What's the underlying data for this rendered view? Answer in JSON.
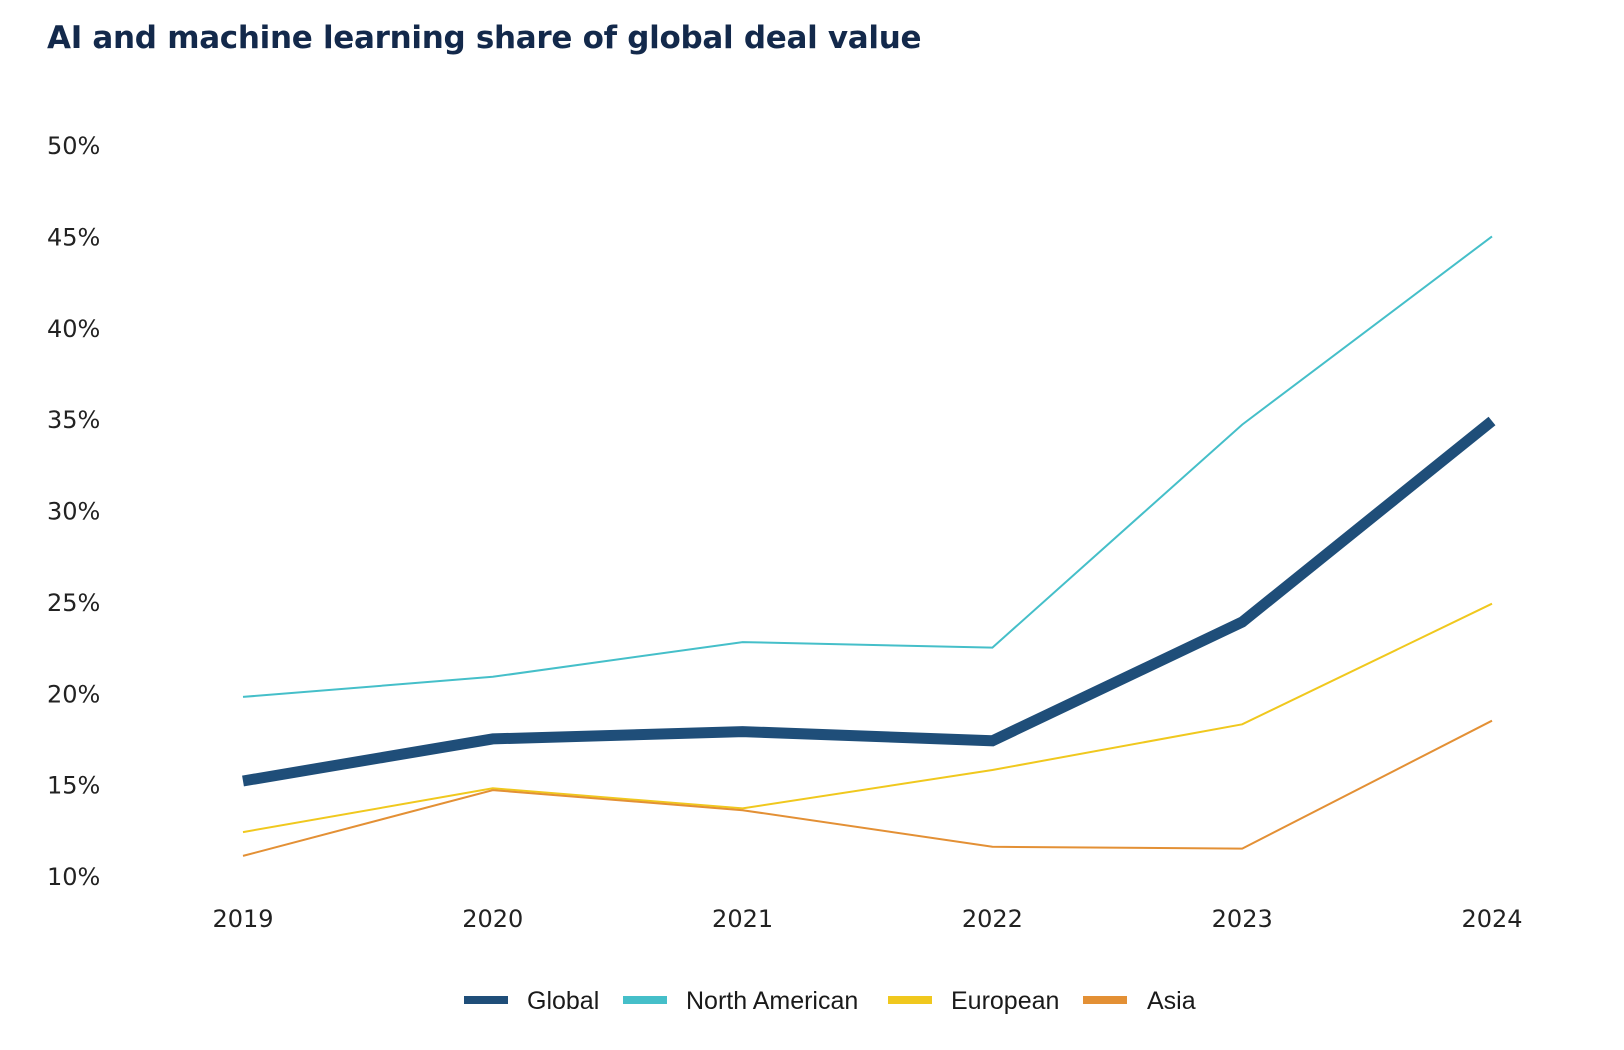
{
  "chart_data": {
    "type": "line",
    "title": "AI and machine learning share of global deal value",
    "xlabel": "",
    "ylabel": "",
    "x": [
      "2019",
      "2020",
      "2021",
      "2022",
      "2023",
      "2024"
    ],
    "ylim": [
      10,
      50
    ],
    "yticks": [
      10,
      15,
      20,
      25,
      30,
      35,
      40,
      45,
      50
    ],
    "ytick_labels": [
      "10%",
      "15%",
      "20%",
      "25%",
      "30%",
      "35%",
      "40%",
      "45%",
      "50%"
    ],
    "grid": false,
    "legend_position": "bottom-center",
    "series": [
      {
        "name": "North American",
        "color": "#45bfc9",
        "width": "thin",
        "values": [
          19.8,
          20.9,
          22.8,
          22.5,
          34.7,
          45.0
        ]
      },
      {
        "name": "European",
        "color": "#f0c81e",
        "width": "thin",
        "values": [
          12.4,
          14.8,
          13.7,
          15.8,
          18.3,
          24.9
        ]
      },
      {
        "name": "Asia",
        "color": "#e39035",
        "width": "thin",
        "values": [
          11.1,
          14.7,
          13.6,
          11.6,
          11.5,
          18.5
        ]
      },
      {
        "name": "Global",
        "color": "#1f4e79",
        "width": "thick",
        "values": [
          15.2,
          17.5,
          17.9,
          17.4,
          23.9,
          34.9
        ]
      }
    ],
    "legend_order": [
      "Global",
      "North American",
      "European",
      "Asia"
    ]
  }
}
